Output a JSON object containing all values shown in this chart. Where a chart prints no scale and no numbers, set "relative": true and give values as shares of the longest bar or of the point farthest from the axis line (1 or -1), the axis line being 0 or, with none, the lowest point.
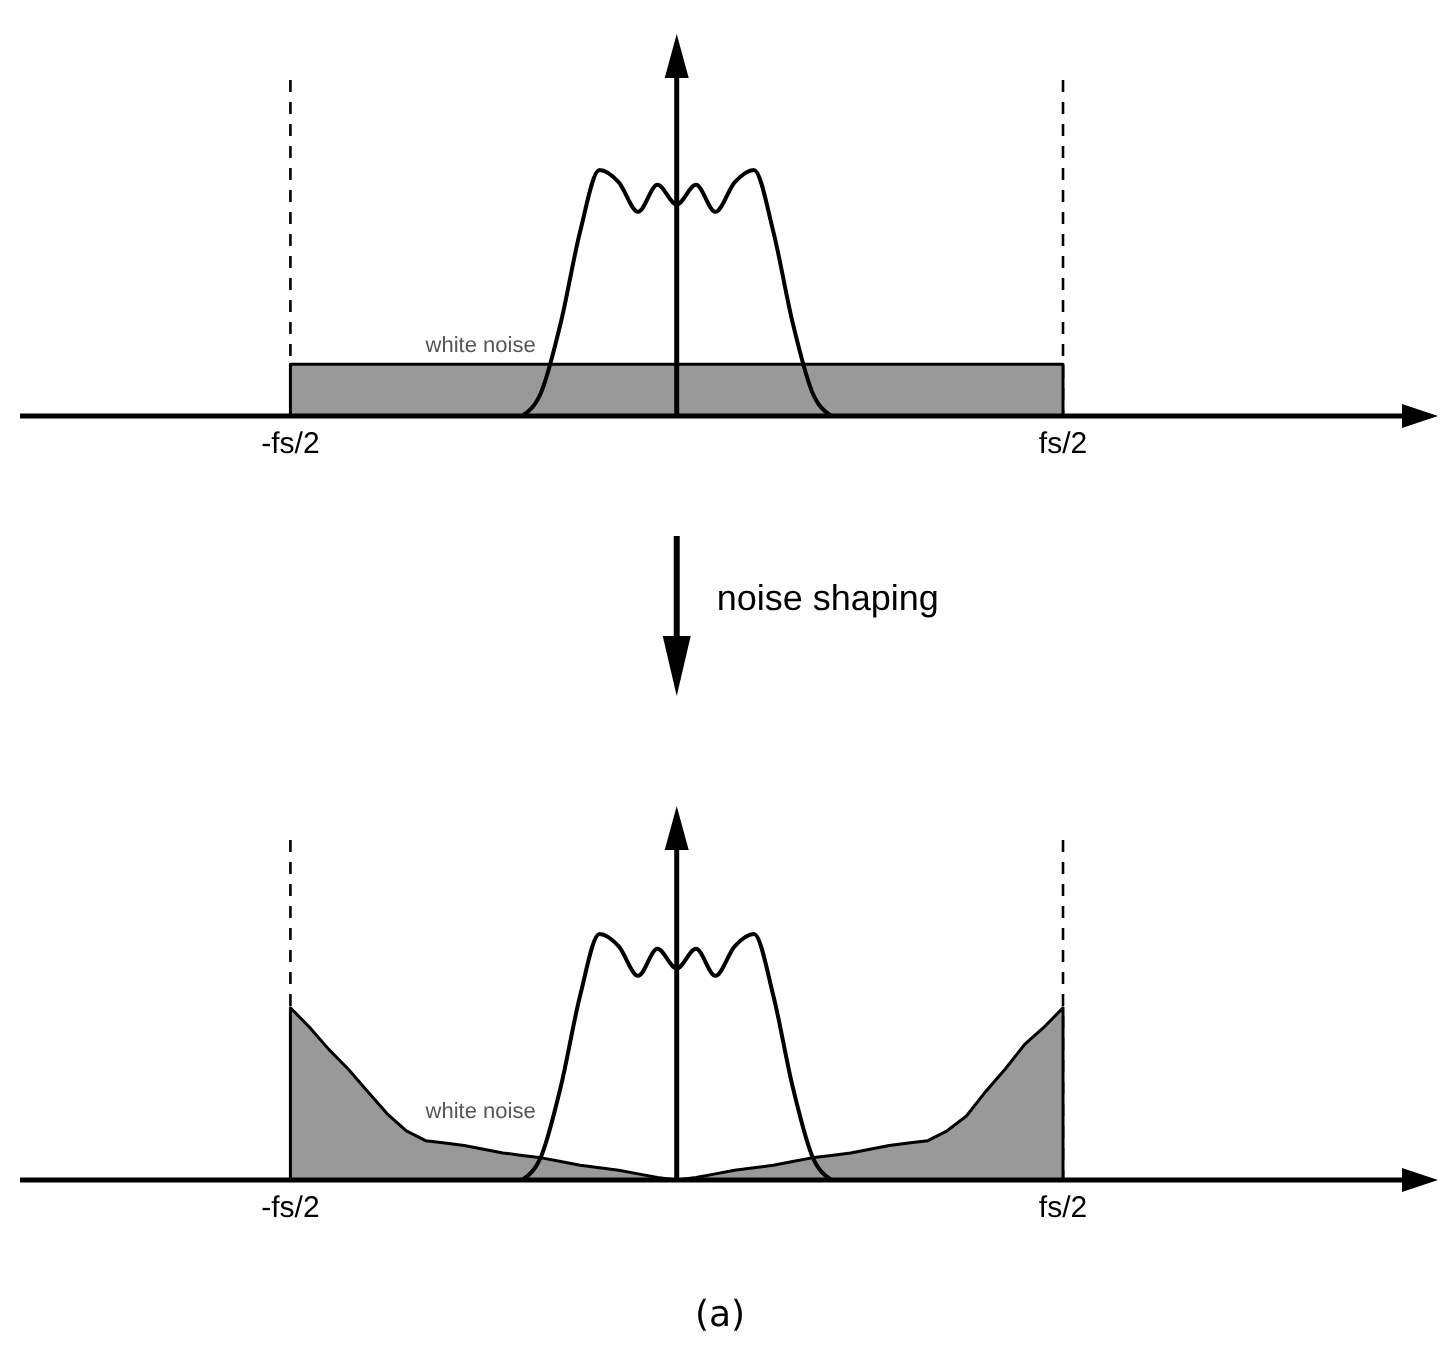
{
  "chart_data": [
    {
      "type": "area",
      "relative": true,
      "categories": [
        null,
        null,
        null,
        null,
        null,
        null,
        null,
        null,
        null,
        null,
        null,
        null,
        null,
        null,
        "-fs/2",
        null,
        null,
        null,
        null,
        null,
        null,
        null,
        null,
        null,
        null,
        null,
        null,
        null,
        null,
        null,
        null,
        null,
        null,
        null,
        null,
        null,
        null,
        null,
        null,
        null,
        null,
        null,
        null,
        null,
        null,
        null,
        null,
        null,
        null,
        null,
        null,
        null,
        null,
        null,
        "fs/2",
        null,
        null,
        null,
        null,
        null,
        null,
        null,
        null,
        null,
        null,
        null,
        null,
        null,
        null,
        null,
        null,
        null,
        null,
        null
      ],
      "ref_lines": [
        {
          "axis": "x",
          "value": "-fs/2",
          "color": "#000000",
          "line_style": "dashed"
        },
        {
          "axis": "x",
          "value": "fs/2",
          "color": "#000000",
          "line_style": "dashed"
        }
      ],
      "series": [
        {
          "name": "white noise",
          "color": "#999999",
          "values": [
            null,
            null,
            null,
            null,
            null,
            null,
            null,
            null,
            null,
            null,
            null,
            null,
            null,
            null,
            0.21,
            0.21,
            0.21,
            0.21,
            0.21,
            0.21,
            0.21,
            0.21,
            0.21,
            0.21,
            0.21,
            0.21,
            0.21,
            0.21,
            0.21,
            0.21,
            0.21,
            0.21,
            0.21,
            0.21,
            0.21,
            0.21,
            0.21,
            0.21,
            0.21,
            0.21,
            0.21,
            0.21,
            0.21,
            0.21,
            0.21,
            0.21,
            0.21,
            0.21,
            0.21,
            0.21,
            0.21,
            0.21,
            0.21,
            0.21,
            0.21,
            null,
            null,
            null,
            null,
            null,
            null,
            null,
            null,
            null,
            null,
            null,
            null,
            null,
            null,
            null,
            null,
            null,
            null,
            null
          ]
        },
        {
          "type": "line",
          "color": "#000000",
          "values": [
            null,
            null,
            null,
            null,
            null,
            null,
            null,
            null,
            null,
            null,
            null,
            null,
            null,
            null,
            null,
            null,
            null,
            null,
            null,
            null,
            null,
            null,
            null,
            null,
            null,
            null,
            0,
            0.1,
            0.38,
            0.75,
            1,
            0.95,
            0.83,
            0.94,
            0.86,
            0.94,
            0.83,
            0.95,
            1,
            0.75,
            0.38,
            0.1,
            0,
            null,
            null,
            null,
            null,
            null,
            null,
            null,
            null,
            null,
            null,
            null,
            null,
            null,
            null,
            null,
            null,
            null,
            null,
            null,
            null,
            null,
            null,
            null,
            null,
            null,
            null,
            null,
            null,
            null,
            null,
            null
          ]
        }
      ]
    },
    {
      "type": "area",
      "relative": true,
      "categories": [
        null,
        null,
        null,
        null,
        null,
        null,
        null,
        null,
        null,
        null,
        null,
        null,
        null,
        null,
        "-fs/2",
        null,
        null,
        null,
        null,
        null,
        null,
        null,
        null,
        null,
        null,
        null,
        null,
        null,
        null,
        null,
        null,
        null,
        null,
        null,
        null,
        null,
        null,
        null,
        null,
        null,
        null,
        null,
        null,
        null,
        null,
        null,
        null,
        null,
        null,
        null,
        null,
        null,
        null,
        null,
        "fs/2",
        null,
        null,
        null,
        null,
        null,
        null,
        null,
        null,
        null,
        null,
        null,
        null,
        null,
        null,
        null,
        null,
        null,
        null,
        null
      ],
      "annotations": [
        "noise shaping",
        "(a)"
      ],
      "ref_lines": [
        {
          "axis": "x",
          "value": "-fs/2",
          "color": "#000000",
          "line_style": "dashed"
        },
        {
          "axis": "x",
          "value": "fs/2",
          "color": "#000000",
          "line_style": "dashed"
        }
      ],
      "series": [
        {
          "name": "white noise",
          "color": "#999999",
          "values": [
            null,
            null,
            null,
            null,
            null,
            null,
            null,
            null,
            null,
            null,
            null,
            null,
            null,
            null,
            0.7,
            0.62,
            0.53,
            0.45,
            0.36,
            0.27,
            0.2,
            0.16,
            0.15,
            0.14,
            0.125,
            0.11,
            0.1,
            0.09,
            0.075,
            0.06,
            0.05,
            0.04,
            0.025,
            0.01,
            0,
            0.01,
            0.025,
            0.04,
            0.05,
            0.06,
            0.075,
            0.09,
            0.1,
            0.11,
            0.125,
            0.14,
            0.15,
            0.16,
            0.2,
            0.26,
            0.36,
            0.45,
            0.55,
            0.62,
            0.7,
            null,
            null,
            null,
            null,
            null,
            null,
            null,
            null,
            null,
            null,
            null,
            null,
            null,
            null,
            null,
            null,
            null,
            null,
            null
          ]
        },
        {
          "type": "line",
          "color": "#000000",
          "values": [
            null,
            null,
            null,
            null,
            null,
            null,
            null,
            null,
            null,
            null,
            null,
            null,
            null,
            null,
            null,
            null,
            null,
            null,
            null,
            null,
            null,
            null,
            null,
            null,
            null,
            null,
            0,
            0.1,
            0.38,
            0.75,
            1,
            0.95,
            0.83,
            0.94,
            0.86,
            0.94,
            0.83,
            0.95,
            1,
            0.75,
            0.38,
            0.1,
            0,
            null,
            null,
            null,
            null,
            null,
            null,
            null,
            null,
            null,
            null,
            null,
            null,
            null,
            null,
            null,
            null,
            null,
            null,
            null,
            null,
            null,
            null,
            null,
            null,
            null,
            null,
            null,
            null,
            null,
            null,
            null
          ]
        }
      ]
    }
  ]
}
